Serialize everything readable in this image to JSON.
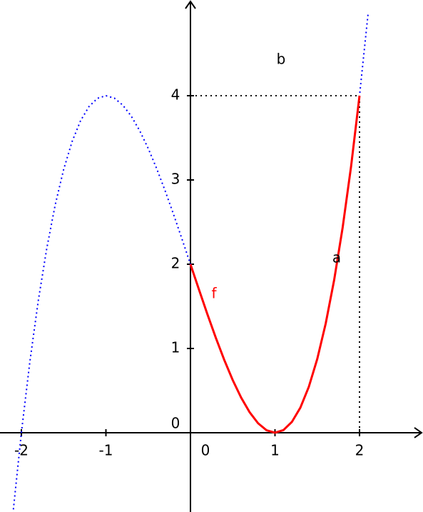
{
  "chart_data": {
    "type": "line",
    "xlim": [
      -2.253,
      2.751
    ],
    "ylim": [
      -0.941,
      5.136
    ],
    "xticks": [
      -2,
      -1,
      0,
      1,
      2
    ],
    "yticks": [
      0,
      1,
      2,
      3,
      4
    ],
    "series": [
      {
        "color": "#0000ff",
        "style": "dotted",
        "x": [
          -2.1,
          -2,
          -1.9,
          -1.8,
          -1.7,
          -1.6,
          -1.5,
          -1.4,
          -1.3,
          -1.2,
          -1.1,
          -1,
          -0.9,
          -0.8,
          -0.7,
          -0.6,
          -0.5,
          -0.4,
          -0.3,
          -0.2,
          -0.1,
          0,
          0.1,
          0.2,
          0.3,
          0.4,
          0.5,
          0.6,
          0.7,
          0.8,
          0.9,
          1,
          1.1,
          1.2,
          1.3,
          1.4,
          1.5,
          1.6,
          1.7,
          1.8,
          1.9,
          2,
          2.1
        ],
        "values": [
          -0.961,
          0,
          0.841,
          1.568,
          2.187,
          2.704,
          3.125,
          3.456,
          3.703,
          3.872,
          3.969,
          4,
          3.971,
          3.888,
          3.757,
          3.584,
          3.375,
          3.136,
          2.873,
          2.592,
          2.299,
          2,
          1.701,
          1.408,
          1.127,
          0.864,
          0.625,
          0.416,
          0.243,
          0.112,
          0.029,
          0,
          0.031,
          0.128,
          0.297,
          0.544,
          0.875,
          1.296,
          1.813,
          2.432,
          3.159,
          4,
          4.961
        ]
      },
      {
        "name": "f",
        "color": "#ff0000",
        "style": "solid",
        "x": [
          0,
          0.1,
          0.2,
          0.3,
          0.4,
          0.5,
          0.6,
          0.7,
          0.8,
          0.9,
          1,
          1.1,
          1.2,
          1.3,
          1.4,
          1.5,
          1.6,
          1.7,
          1.8,
          1.9,
          2
        ],
        "values": [
          2,
          1.701,
          1.408,
          1.127,
          0.864,
          0.625,
          0.416,
          0.243,
          0.112,
          0.029,
          0,
          0.031,
          0.128,
          0.297,
          0.544,
          0.875,
          1.296,
          1.813,
          2.432,
          3.159,
          4
        ]
      }
    ],
    "point": {
      "x": 2,
      "y": 4
    },
    "annotations": [
      "a",
      "b"
    ]
  }
}
